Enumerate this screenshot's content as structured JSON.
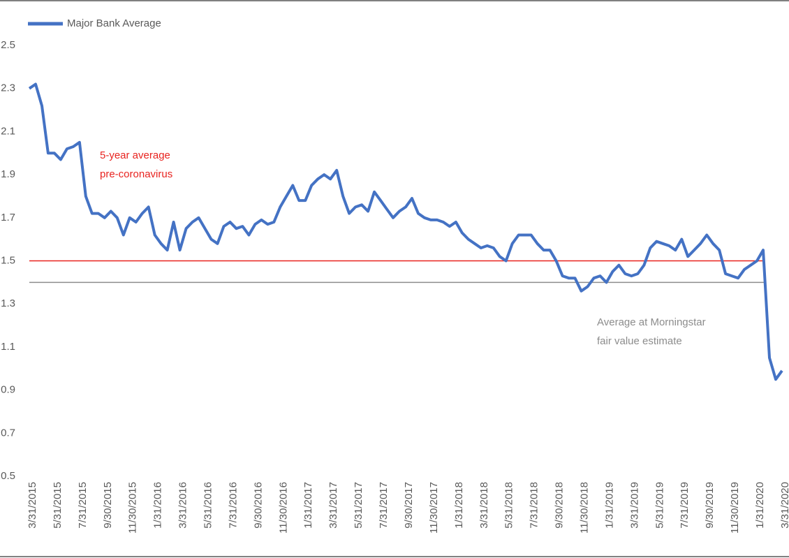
{
  "chart_data": {
    "type": "line",
    "categories": [
      "3/31/2015",
      null,
      null,
      null,
      "5/31/2015",
      null,
      null,
      null,
      "7/31/2015",
      null,
      null,
      null,
      "9/30/2015",
      null,
      null,
      null,
      "11/30/2015",
      null,
      null,
      null,
      "1/31/2016",
      null,
      null,
      null,
      "3/31/2016",
      null,
      null,
      null,
      "5/31/2016",
      null,
      null,
      null,
      "7/31/2016",
      null,
      null,
      null,
      "9/30/2016",
      null,
      null,
      null,
      "11/30/2016",
      null,
      null,
      null,
      "1/31/2017",
      null,
      null,
      null,
      "3/31/2017",
      null,
      null,
      null,
      "5/31/2017",
      null,
      null,
      null,
      "7/31/2017",
      null,
      null,
      null,
      "9/30/2017",
      null,
      null,
      null,
      "11/30/2017",
      null,
      null,
      null,
      "1/31/2018",
      null,
      null,
      null,
      "3/31/2018",
      null,
      null,
      null,
      "5/31/2018",
      null,
      null,
      null,
      "7/31/2018",
      null,
      null,
      null,
      "9/30/2018",
      null,
      null,
      null,
      "11/30/2018",
      null,
      null,
      null,
      "1/31/2019",
      null,
      null,
      null,
      "3/31/2019",
      null,
      null,
      null,
      "5/31/2019",
      null,
      null,
      null,
      "7/31/2019",
      null,
      null,
      null,
      "9/30/2019",
      null,
      null,
      null,
      "11/30/2019",
      null,
      null,
      null,
      "1/31/2020",
      null,
      null,
      null,
      "3/31/2020"
    ],
    "series": [
      {
        "name": "Major Bank Average",
        "color": "#4472c4",
        "values": [
          2.3,
          2.32,
          2.22,
          2.0,
          2.0,
          1.97,
          2.02,
          2.03,
          2.05,
          1.8,
          1.72,
          1.72,
          1.7,
          1.73,
          1.7,
          1.62,
          1.7,
          1.68,
          1.72,
          1.75,
          1.62,
          1.58,
          1.55,
          1.68,
          1.55,
          1.65,
          1.68,
          1.7,
          1.65,
          1.6,
          1.58,
          1.66,
          1.68,
          1.65,
          1.66,
          1.62,
          1.67,
          1.69,
          1.67,
          1.68,
          1.75,
          1.8,
          1.85,
          1.78,
          1.78,
          1.85,
          1.88,
          1.9,
          1.88,
          1.92,
          1.8,
          1.72,
          1.75,
          1.76,
          1.73,
          1.82,
          1.78,
          1.74,
          1.7,
          1.73,
          1.75,
          1.79,
          1.72,
          1.7,
          1.69,
          1.69,
          1.68,
          1.66,
          1.68,
          1.63,
          1.6,
          1.58,
          1.56,
          1.57,
          1.56,
          1.52,
          1.5,
          1.58,
          1.62,
          1.62,
          1.62,
          1.58,
          1.55,
          1.55,
          1.5,
          1.43,
          1.42,
          1.42,
          1.36,
          1.38,
          1.42,
          1.43,
          1.4,
          1.45,
          1.48,
          1.44,
          1.43,
          1.44,
          1.48,
          1.56,
          1.59,
          1.58,
          1.57,
          1.55,
          1.6,
          1.52,
          1.55,
          1.58,
          1.62,
          1.58,
          1.55,
          1.44,
          1.43,
          1.42,
          1.46,
          1.48,
          1.5,
          1.55,
          1.05,
          0.95,
          0.99
        ]
      }
    ],
    "reference_lines": [
      {
        "value": 1.5,
        "color": "#e8231f",
        "label": [
          "5-year average",
          "pre-coronavirus"
        ]
      },
      {
        "value": 1.4,
        "color": "#8c8c8c",
        "label": [
          "Average at Morningstar",
          "fair value estimate"
        ]
      }
    ],
    "ylim": [
      0.5,
      2.5
    ],
    "yticks": [
      0.5,
      0.7,
      0.9,
      1.1,
      1.3,
      1.5,
      1.7,
      1.9,
      2.1,
      2.3,
      2.5
    ],
    "grid": false,
    "legend": "top-left"
  }
}
